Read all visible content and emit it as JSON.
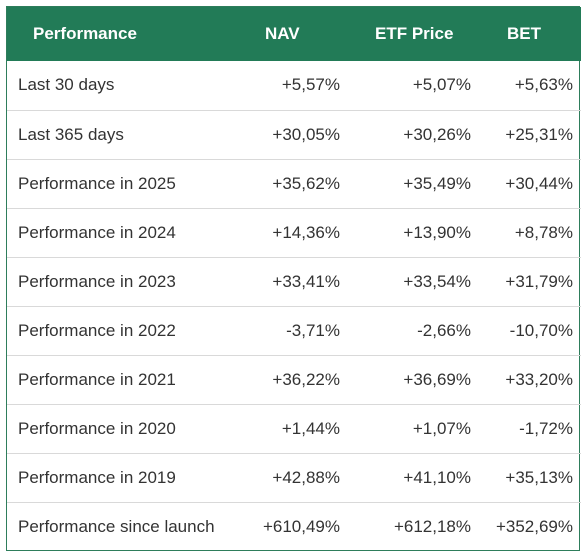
{
  "table": {
    "headers": [
      "Performance",
      "NAV",
      "ETF Price",
      "BET"
    ],
    "rows": [
      {
        "label": "Last 30 days",
        "nav": "+5,57%",
        "etf": "+5,07%",
        "bet": "+5,63%"
      },
      {
        "label": "Last 365 days",
        "nav": "+30,05%",
        "etf": "+30,26%",
        "bet": "+25,31%"
      },
      {
        "label": "Performance in 2025",
        "nav": "+35,62%",
        "etf": "+35,49%",
        "bet": "+30,44%"
      },
      {
        "label": "Performance in 2024",
        "nav": "+14,36%",
        "etf": "+13,90%",
        "bet": "+8,78%"
      },
      {
        "label": "Performance in 2023",
        "nav": "+33,41%",
        "etf": "+33,54%",
        "bet": "+31,79%"
      },
      {
        "label": "Performance in 2022",
        "nav": "-3,71%",
        "etf": "-2,66%",
        "bet": "-10,70%"
      },
      {
        "label": "Performance in 2021",
        "nav": "+36,22%",
        "etf": "+36,69%",
        "bet": "+33,20%"
      },
      {
        "label": "Performance in 2020",
        "nav": "+1,44%",
        "etf": "+1,07%",
        "bet": "-1,72%"
      },
      {
        "label": "Performance in 2019",
        "nav": "+42,88%",
        "etf": "+41,10%",
        "bet": "+35,13%"
      },
      {
        "label": "Performance since launch",
        "nav": "+610,49%",
        "etf": "+612,18%",
        "bet": "+352,69%"
      }
    ]
  },
  "colors": {
    "header_bg": "#227b57",
    "header_text": "#ffffff",
    "border": "#2e7d5b",
    "row_divider": "#d9d9d9",
    "cell_text": "#333333"
  }
}
